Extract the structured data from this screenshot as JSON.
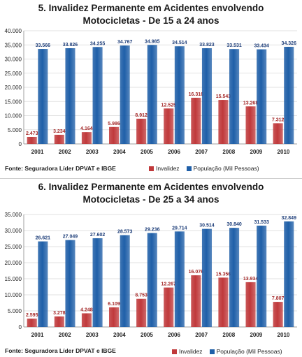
{
  "colors": {
    "invalidez": "#c0393b",
    "populacao": "#1f5fa8"
  },
  "chart_data": [
    {
      "type": "bar",
      "title_line1": "5. Invalidez Permanente em Acidentes envolvendo",
      "title_line2": "Motocicletas - De 15 a 24 anos",
      "categories": [
        "2001",
        "2002",
        "2003",
        "2004",
        "2005",
        "2006",
        "2007",
        "2008",
        "2009",
        "2010"
      ],
      "series": [
        {
          "name": "Invalidez",
          "values": [
            2473,
            3234,
            4164,
            5986,
            8912,
            12525,
            16316,
            15543,
            13268,
            7312
          ],
          "labels": [
            "2.473",
            "3.234",
            "4.164",
            "5.986",
            "8.912",
            "12.525",
            "16.316",
            "15.543",
            "13.268",
            "7.312"
          ]
        },
        {
          "name": "População (Mil Pessoas)",
          "values": [
            33566,
            33826,
            34255,
            34767,
            34985,
            34514,
            33823,
            33531,
            33434,
            34326
          ],
          "labels": [
            "33.566",
            "33.826",
            "34.255",
            "34.767",
            "34.985",
            "34.514",
            "33.823",
            "33.531",
            "33.434",
            "34.326"
          ]
        }
      ],
      "ylim": [
        0,
        40000
      ],
      "yticks": [
        "0",
        "5.000",
        "10.000",
        "15.000",
        "20.000",
        "25.000",
        "30.000",
        "35.000",
        "40.000"
      ],
      "source": "Fonte: Seguradora Líder DPVAT e IBGE",
      "legend": [
        "Invalidez",
        "População (Mil Pessoas)"
      ]
    },
    {
      "type": "bar",
      "title_line1": "6. Invalidez Permanente em Acidentes envolvendo",
      "title_line2": "Motocicletas - De 25 a 34 anos",
      "categories": [
        "2001",
        "2002",
        "2003",
        "2004",
        "2005",
        "2006",
        "2007",
        "2008",
        "2009",
        "2010"
      ],
      "series": [
        {
          "name": "Invalidez",
          "values": [
            2595,
            3278,
            4248,
            6109,
            8753,
            12267,
            16076,
            15356,
            13934,
            7807
          ],
          "labels": [
            "2.595",
            "3.278",
            "4.248",
            "6.109",
            "8.753",
            "12.267",
            "16.076",
            "15.356",
            "13.934",
            "7.807"
          ]
        },
        {
          "name": "População (Mil Pessoas)",
          "values": [
            26621,
            27049,
            27602,
            28573,
            29236,
            29714,
            30514,
            30840,
            31533,
            32849
          ],
          "labels": [
            "26.621",
            "27.049",
            "27.602",
            "28.573",
            "29.236",
            "29.714",
            "30.514",
            "30.840",
            "31.533",
            "32.849"
          ]
        }
      ],
      "ylim": [
        0,
        35000
      ],
      "yticks": [
        "0",
        "5.000",
        "10.000",
        "15.000",
        "20.000",
        "25.000",
        "30.000",
        "35.000"
      ],
      "source": "Fonte: Seguradora Líder DPVAT e IBGE",
      "legend": [
        "Invalidez",
        "População (Mil Pessoas)"
      ]
    }
  ]
}
